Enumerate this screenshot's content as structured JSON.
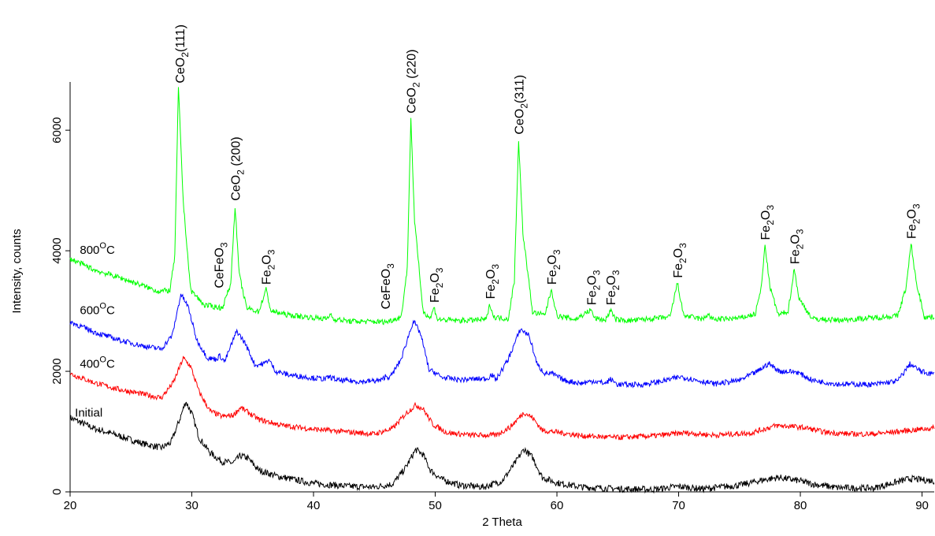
{
  "chart_data": {
    "type": "line",
    "title": "",
    "xlabel": "2 Theta",
    "ylabel": "Intensity, counts",
    "xlim": [
      20,
      91
    ],
    "ylim": [
      0,
      6800
    ],
    "xticks": [
      20,
      30,
      40,
      50,
      60,
      70,
      80,
      90
    ],
    "yticks": [
      0,
      2000,
      4000,
      6000
    ],
    "grid": false,
    "series": [
      {
        "name": "Initial",
        "color": "#000000",
        "points": [
          [
            20,
            1230
          ],
          [
            22,
            1050
          ],
          [
            24,
            930
          ],
          [
            26,
            800
          ],
          [
            27.5,
            730
          ],
          [
            28.3,
            820
          ],
          [
            29,
            1200
          ],
          [
            29.5,
            1500
          ],
          [
            30,
            1300
          ],
          [
            30.6,
            900
          ],
          [
            31.5,
            650
          ],
          [
            32.5,
            500
          ],
          [
            33.4,
            480
          ],
          [
            34,
            600
          ],
          [
            34.6,
            560
          ],
          [
            35.5,
            360
          ],
          [
            37,
            260
          ],
          [
            40,
            140
          ],
          [
            43,
            90
          ],
          [
            45,
            80
          ],
          [
            46.5,
            130
          ],
          [
            47.5,
            380
          ],
          [
            48.4,
            700
          ],
          [
            49,
            620
          ],
          [
            49.6,
            360
          ],
          [
            50.5,
            210
          ],
          [
            52,
            110
          ],
          [
            54,
            80
          ],
          [
            55.5,
            180
          ],
          [
            56.5,
            460
          ],
          [
            57.3,
            710
          ],
          [
            58,
            570
          ],
          [
            58.8,
            240
          ],
          [
            60,
            150
          ],
          [
            62,
            80
          ],
          [
            65,
            50
          ],
          [
            68,
            40
          ],
          [
            70,
            90
          ],
          [
            72,
            50
          ],
          [
            75,
            110
          ],
          [
            77,
            200
          ],
          [
            78.2,
            240
          ],
          [
            80,
            180
          ],
          [
            81,
            130
          ],
          [
            83,
            70
          ],
          [
            86,
            60
          ],
          [
            89,
            220
          ],
          [
            91,
            180
          ]
        ]
      },
      {
        "name": "400°C",
        "color": "#ff0000",
        "points": [
          [
            20,
            1960
          ],
          [
            22,
            1810
          ],
          [
            24,
            1700
          ],
          [
            26,
            1620
          ],
          [
            27.5,
            1560
          ],
          [
            28.5,
            1820
          ],
          [
            29.3,
            2220
          ],
          [
            29.9,
            2080
          ],
          [
            30.6,
            1660
          ],
          [
            31.5,
            1340
          ],
          [
            32.5,
            1250
          ],
          [
            33.4,
            1270
          ],
          [
            34,
            1400
          ],
          [
            34.7,
            1310
          ],
          [
            35.5,
            1200
          ],
          [
            37.5,
            1100
          ],
          [
            40,
            1040
          ],
          [
            43,
            990
          ],
          [
            45,
            960
          ],
          [
            46.5,
            1050
          ],
          [
            47.6,
            1300
          ],
          [
            48.4,
            1440
          ],
          [
            49,
            1380
          ],
          [
            49.8,
            1120
          ],
          [
            51,
            980
          ],
          [
            53,
            940
          ],
          [
            55,
            940
          ],
          [
            56.2,
            1080
          ],
          [
            57.3,
            1320
          ],
          [
            58,
            1230
          ],
          [
            58.8,
            1020
          ],
          [
            60,
            990
          ],
          [
            62,
            930
          ],
          [
            65,
            900
          ],
          [
            68,
            930
          ],
          [
            70.5,
            980
          ],
          [
            73,
            940
          ],
          [
            76,
            980
          ],
          [
            78,
            1100
          ],
          [
            79,
            1090
          ],
          [
            80.5,
            1060
          ],
          [
            82,
            990
          ],
          [
            84,
            960
          ],
          [
            86,
            960
          ],
          [
            88.5,
            1010
          ],
          [
            91,
            1060
          ]
        ]
      },
      {
        "name": "600°C",
        "color": "#0000ff",
        "points": [
          [
            20,
            2820
          ],
          [
            22,
            2650
          ],
          [
            24,
            2520
          ],
          [
            26,
            2420
          ],
          [
            27.5,
            2370
          ],
          [
            28.4,
            2600
          ],
          [
            29.1,
            3280
          ],
          [
            29.7,
            3070
          ],
          [
            30.4,
            2520
          ],
          [
            31.3,
            2220
          ],
          [
            32,
            2200
          ],
          [
            32.3,
            2260
          ],
          [
            32.7,
            2160
          ],
          [
            33.7,
            2670
          ],
          [
            34.4,
            2460
          ],
          [
            35.2,
            2100
          ],
          [
            36,
            2130
          ],
          [
            36.3,
            2200
          ],
          [
            36.9,
            2000
          ],
          [
            38,
            1940
          ],
          [
            40,
            1890
          ],
          [
            41,
            1870
          ],
          [
            41.3,
            1910
          ],
          [
            42,
            1850
          ],
          [
            44,
            1830
          ],
          [
            45.6,
            1850
          ],
          [
            45.9,
            1920
          ],
          [
            46.3,
            1900
          ],
          [
            47.2,
            2200
          ],
          [
            48.2,
            2840
          ],
          [
            48.8,
            2620
          ],
          [
            49.5,
            2020
          ],
          [
            50,
            1980
          ],
          [
            50.5,
            1900
          ],
          [
            52,
            1860
          ],
          [
            54.3,
            1880
          ],
          [
            54.6,
            1950
          ],
          [
            55,
            1860
          ],
          [
            56,
            2200
          ],
          [
            57,
            2700
          ],
          [
            57.7,
            2600
          ],
          [
            58.4,
            2100
          ],
          [
            59,
            1970
          ],
          [
            59.6,
            1960
          ],
          [
            60.6,
            1850
          ],
          [
            62,
            1800
          ],
          [
            63,
            1840
          ],
          [
            64,
            1800
          ],
          [
            64.4,
            1870
          ],
          [
            65,
            1780
          ],
          [
            67,
            1780
          ],
          [
            68.5,
            1830
          ],
          [
            70.2,
            1910
          ],
          [
            71.3,
            1860
          ],
          [
            73,
            1790
          ],
          [
            75,
            1850
          ],
          [
            76.5,
            2000
          ],
          [
            77.4,
            2130
          ],
          [
            78.3,
            2000
          ],
          [
            79.7,
            1990
          ],
          [
            81,
            1850
          ],
          [
            83,
            1790
          ],
          [
            86,
            1780
          ],
          [
            88,
            1840
          ],
          [
            89,
            2120
          ],
          [
            90,
            1990
          ],
          [
            91,
            1950
          ]
        ]
      },
      {
        "name": "800°C",
        "color": "#00ff00",
        "points": [
          [
            20,
            3870
          ],
          [
            22,
            3680
          ],
          [
            24,
            3560
          ],
          [
            26,
            3420
          ],
          [
            27.2,
            3330
          ],
          [
            28.2,
            3340
          ],
          [
            28.6,
            3900
          ],
          [
            28.9,
            6700
          ],
          [
            29.3,
            4800
          ],
          [
            29.9,
            3350
          ],
          [
            31,
            3100
          ],
          [
            32.5,
            3050
          ],
          [
            33.2,
            3450
          ],
          [
            33.55,
            4750
          ],
          [
            33.9,
            3600
          ],
          [
            34.5,
            3050
          ],
          [
            35.5,
            2990
          ],
          [
            36.1,
            3360
          ],
          [
            36.5,
            3000
          ],
          [
            38,
            2930
          ],
          [
            40,
            2890
          ],
          [
            41.2,
            2870
          ],
          [
            41.4,
            2970
          ],
          [
            41.6,
            2870
          ],
          [
            43,
            2830
          ],
          [
            46,
            2820
          ],
          [
            47.2,
            2900
          ],
          [
            47.7,
            3700
          ],
          [
            48,
            6200
          ],
          [
            48.3,
            4500
          ],
          [
            49,
            3000
          ],
          [
            49.6,
            2880
          ],
          [
            49.9,
            3060
          ],
          [
            50.2,
            2860
          ],
          [
            52,
            2840
          ],
          [
            54.2,
            2860
          ],
          [
            54.5,
            3120
          ],
          [
            54.8,
            2900
          ],
          [
            56,
            2870
          ],
          [
            56.5,
            3500
          ],
          [
            56.85,
            5850
          ],
          [
            57.2,
            4300
          ],
          [
            58,
            2980
          ],
          [
            59,
            2930
          ],
          [
            59.55,
            3360
          ],
          [
            60,
            2920
          ],
          [
            61.5,
            2860
          ],
          [
            62.8,
            3020
          ],
          [
            63.1,
            2880
          ],
          [
            64,
            2850
          ],
          [
            64.4,
            3020
          ],
          [
            64.8,
            2860
          ],
          [
            66,
            2840
          ],
          [
            69.3,
            2900
          ],
          [
            69.9,
            3470
          ],
          [
            70.4,
            2930
          ],
          [
            72,
            2860
          ],
          [
            72.4,
            2950
          ],
          [
            72.8,
            2860
          ],
          [
            75,
            2880
          ],
          [
            76.3,
            2950
          ],
          [
            76.8,
            3400
          ],
          [
            77.1,
            4100
          ],
          [
            77.5,
            3400
          ],
          [
            78.2,
            2930
          ],
          [
            79,
            3000
          ],
          [
            79.5,
            3700
          ],
          [
            79.9,
            3200
          ],
          [
            81,
            2870
          ],
          [
            83,
            2850
          ],
          [
            85.5,
            2880
          ],
          [
            88,
            2920
          ],
          [
            88.7,
            3400
          ],
          [
            89.1,
            4120
          ],
          [
            89.5,
            3500
          ],
          [
            90.2,
            2900
          ],
          [
            91,
            2900
          ]
        ]
      }
    ],
    "peak_labels": [
      {
        "base": "CeO",
        "sub": "2",
        "suffix": "(111)",
        "x": 29.0,
        "y": 6700
      },
      {
        "base": "CeFeO",
        "sub": "3",
        "suffix": "",
        "x": 32.2,
        "y": 3300
      },
      {
        "base": "CeO",
        "sub": "2",
        "suffix": " (200)",
        "x": 33.55,
        "y": 4750
      },
      {
        "base": "Fe",
        "sub": "2",
        "suffix": "O",
        "sub2": "3",
        "x": 36.1,
        "y": 3360
      },
      {
        "base": "CeFeO",
        "sub": "3",
        "suffix": "",
        "x": 45.9,
        "y": 2950
      },
      {
        "base": "CeO",
        "sub": "2",
        "suffix": "  (220)",
        "x": 48.0,
        "y": 6200
      },
      {
        "base": "Fe",
        "sub": "2",
        "suffix": "O",
        "sub2": "3",
        "x": 49.9,
        "y": 3060
      },
      {
        "base": "Fe",
        "sub": "2",
        "suffix": "O",
        "sub2": "3",
        "x": 54.5,
        "y": 3120
      },
      {
        "base": "CeO",
        "sub": "2",
        "suffix": "(311)",
        "x": 56.85,
        "y": 5850
      },
      {
        "base": "Fe",
        "sub": "2",
        "suffix": "O",
        "sub2": "3",
        "x": 59.55,
        "y": 3360
      },
      {
        "base": "Fe",
        "sub": "2",
        "suffix": "O",
        "sub2": "3",
        "x": 62.8,
        "y": 3020
      },
      {
        "base": "Fe",
        "sub": "2",
        "suffix": "O",
        "sub2": "3",
        "x": 64.4,
        "y": 3020
      },
      {
        "base": "Fe",
        "sub": "2",
        "suffix": "O",
        "sub2": "3",
        "x": 69.9,
        "y": 3470
      },
      {
        "base": "Fe",
        "sub": "2",
        "suffix": "O",
        "sub2": "3",
        "x": 77.1,
        "y": 4100
      },
      {
        "base": "Fe",
        "sub": "2",
        "suffix": "O",
        "sub2": "3",
        "x": 79.5,
        "y": 3700
      },
      {
        "base": "Fe",
        "sub": "2",
        "suffix": "O",
        "sub2": "3",
        "x": 89.1,
        "y": 4120
      }
    ],
    "series_labels": [
      {
        "text": "800",
        "sup": "O",
        "unit": "C",
        "x": 20.8,
        "y": 3950
      },
      {
        "text": "600",
        "sup": "O",
        "unit": "C",
        "x": 20.8,
        "y": 2950
      },
      {
        "text": "400",
        "sup": "O",
        "unit": "C",
        "x": 20.8,
        "y": 2060
      },
      {
        "text": "Initial",
        "sup": "",
        "unit": "",
        "x": 20.4,
        "y": 1250
      }
    ]
  }
}
